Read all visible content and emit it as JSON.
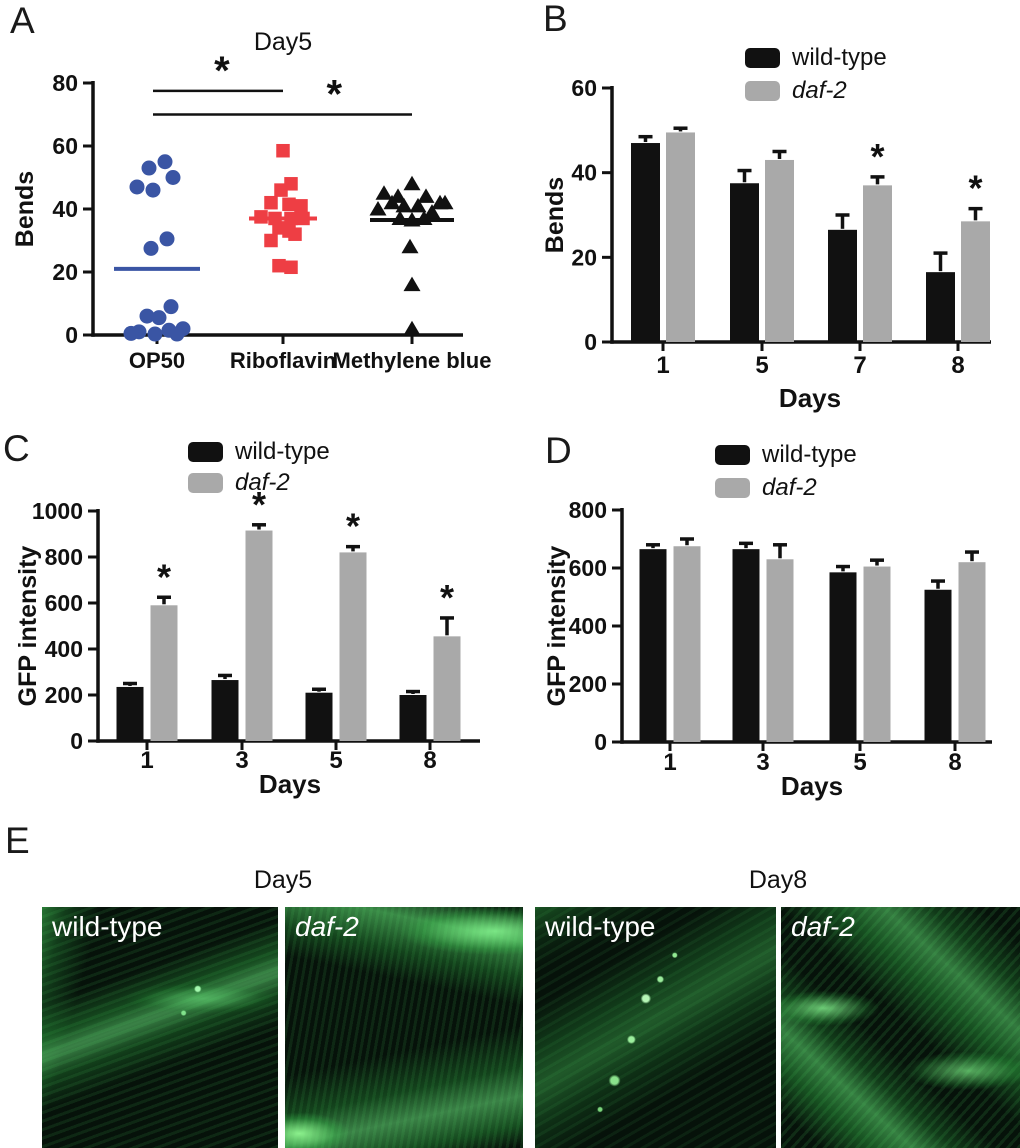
{
  "figure": {
    "panels": [
      {
        "letter": "A"
      },
      {
        "letter": "B"
      },
      {
        "letter": "C"
      },
      {
        "letter": "D"
      },
      {
        "letter": "E"
      }
    ]
  },
  "colors": {
    "blue": "#3a55a4",
    "red": "#ee3e44",
    "black": "#111111",
    "gray": "#a9a9a9",
    "green": "#3ad65c"
  },
  "chart_data": [
    {
      "panel": "A",
      "type": "scatter",
      "title": "Day5",
      "ylabel": "Bends",
      "ylim": [
        0,
        80
      ],
      "yticks": [
        0,
        20,
        40,
        60,
        80
      ],
      "groups": [
        {
          "label": "OP50",
          "marker": "circle",
          "color_key": "blue",
          "mean": 21,
          "points": [
            [
              -8,
              53
            ],
            [
              8,
              55
            ],
            [
              16,
              50
            ],
            [
              -20,
              47
            ],
            [
              -4,
              46
            ],
            [
              10,
              30.5
            ],
            [
              -6,
              27.5
            ],
            [
              14,
              9
            ],
            [
              -10,
              6
            ],
            [
              2,
              5.5
            ],
            [
              26,
              2
            ],
            [
              12,
              1.5
            ],
            [
              -18,
              1
            ],
            [
              -26,
              0.5
            ],
            [
              -2,
              0.3
            ],
            [
              20,
              0.3
            ]
          ]
        },
        {
          "label": "Riboflavin",
          "marker": "square",
          "color_key": "red",
          "mean": 37,
          "points": [
            [
              0,
              58.5
            ],
            [
              8,
              48
            ],
            [
              -2,
              46
            ],
            [
              -12,
              42
            ],
            [
              6,
              41.5
            ],
            [
              18,
              41
            ],
            [
              -22,
              37.5
            ],
            [
              -8,
              37
            ],
            [
              8,
              37
            ],
            [
              20,
              37
            ],
            [
              -4,
              34
            ],
            [
              6,
              33
            ],
            [
              12,
              32
            ],
            [
              -12,
              30
            ],
            [
              -4,
              22
            ],
            [
              8,
              21.5
            ]
          ]
        },
        {
          "label": "Methylene blue",
          "marker": "triangle",
          "color_key": "black",
          "mean": 36.5,
          "points": [
            [
              0,
              48
            ],
            [
              -28,
              45
            ],
            [
              -14,
              44
            ],
            [
              14,
              44
            ],
            [
              28,
              42
            ],
            [
              -20,
              42
            ],
            [
              -8,
              41
            ],
            [
              6,
              41
            ],
            [
              33,
              42
            ],
            [
              -34,
              40
            ],
            [
              20,
              39
            ],
            [
              -12,
              37
            ],
            [
              0,
              36.5
            ],
            [
              12,
              37
            ],
            [
              -2,
              28
            ],
            [
              0,
              16
            ],
            [
              0,
              2
            ]
          ]
        }
      ],
      "significance": [
        {
          "between": [
            "OP50",
            "Riboflavin"
          ],
          "y": 77.5,
          "label": "*"
        },
        {
          "between": [
            "OP50",
            "Methylene blue"
          ],
          "y": 70,
          "label": "*"
        }
      ]
    },
    {
      "panel": "B",
      "type": "bar",
      "ylabel": "Bends",
      "xlabel": "Days",
      "ylim": [
        0,
        60
      ],
      "yticks": [
        0,
        20,
        40,
        60
      ],
      "categories": [
        "1",
        "5",
        "7",
        "8"
      ],
      "series": [
        {
          "name": "wild-type",
          "color_key": "black",
          "italic": false,
          "values": [
            47,
            37.5,
            26.5,
            16.5
          ],
          "errors": [
            1.5,
            3,
            3.5,
            4.5
          ],
          "sig": [
            "",
            "",
            "",
            ""
          ]
        },
        {
          "name": "daf-2",
          "color_key": "gray",
          "italic": true,
          "values": [
            49.5,
            43,
            37,
            28.5
          ],
          "errors": [
            1,
            2,
            2,
            3
          ],
          "sig": [
            "",
            "",
            "*",
            "*"
          ]
        }
      ],
      "legend_position": "top"
    },
    {
      "panel": "C",
      "type": "bar",
      "ylabel": "GFP intensity",
      "xlabel": "Days",
      "ylim": [
        0,
        1000
      ],
      "yticks": [
        0,
        200,
        400,
        600,
        800,
        1000
      ],
      "categories": [
        "1",
        "3",
        "5",
        "8"
      ],
      "series": [
        {
          "name": "wild-type",
          "color_key": "black",
          "italic": false,
          "values": [
            235,
            265,
            210,
            200
          ],
          "errors": [
            15,
            20,
            15,
            15
          ],
          "sig": [
            "",
            "",
            "",
            ""
          ]
        },
        {
          "name": "daf-2",
          "color_key": "gray",
          "italic": true,
          "values": [
            590,
            915,
            820,
            455
          ],
          "errors": [
            35,
            25,
            25,
            80
          ],
          "sig": [
            "*",
            "*",
            "*",
            "*"
          ]
        }
      ],
      "legend_position": "top"
    },
    {
      "panel": "D",
      "type": "bar",
      "ylabel": "GFP intensity",
      "xlabel": "Days",
      "ylim": [
        0,
        800
      ],
      "yticks": [
        0,
        200,
        400,
        600,
        800
      ],
      "categories": [
        "1",
        "3",
        "5",
        "8"
      ],
      "series": [
        {
          "name": "wild-type",
          "color_key": "black",
          "italic": false,
          "values": [
            665,
            665,
            585,
            525
          ],
          "errors": [
            15,
            20,
            20,
            30
          ],
          "sig": [
            "",
            "",
            "",
            ""
          ]
        },
        {
          "name": "daf-2",
          "color_key": "gray",
          "italic": true,
          "values": [
            675,
            630,
            605,
            620
          ],
          "errors": [
            25,
            50,
            22,
            35
          ],
          "sig": [
            "",
            "",
            "",
            ""
          ]
        }
      ],
      "legend_position": "top"
    }
  ],
  "panel_e": {
    "sections": [
      {
        "title": "Day5",
        "images": [
          {
            "label": "wild-type",
            "italic": false
          },
          {
            "label": "daf-2",
            "italic": true
          }
        ]
      },
      {
        "title": "Day8",
        "images": [
          {
            "label": "wild-type",
            "italic": false
          },
          {
            "label": "daf-2",
            "italic": true
          }
        ]
      }
    ]
  }
}
